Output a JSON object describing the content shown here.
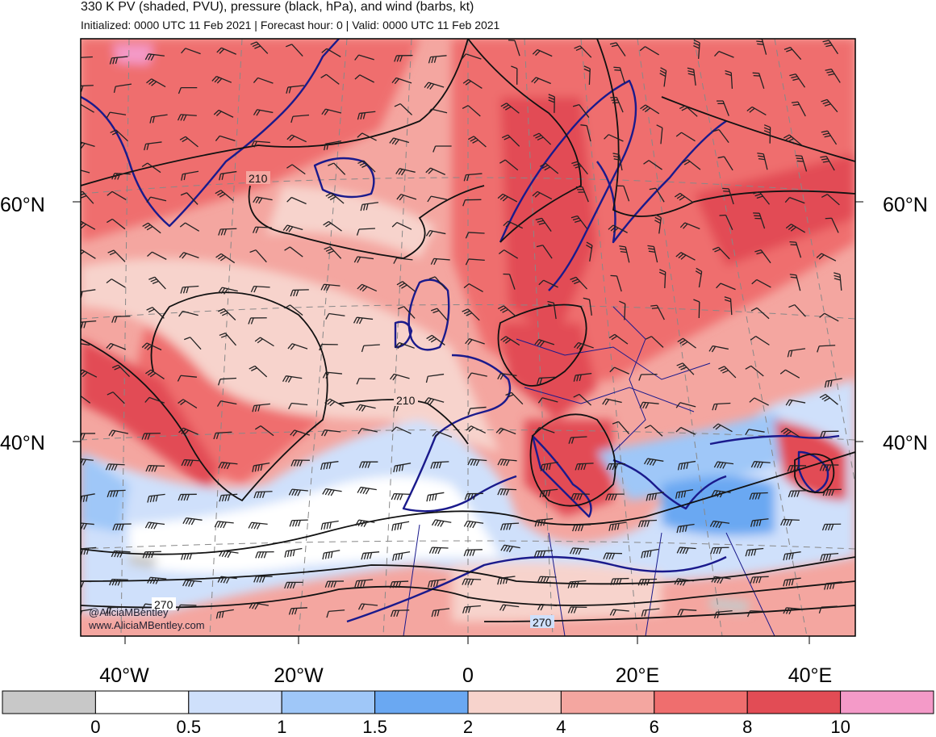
{
  "header": {
    "title": "330 K PV (shaded, PVU), pressure (black, hPa), and wind (barbs, kt)",
    "subtitle": "Initialized: 0000 UTC 11 Feb 2021 | Forecast hour: 0 | Valid: 0000 UTC 11 Feb 2021"
  },
  "map": {
    "projection": "lambert-conformal",
    "region": "North Atlantic and Europe",
    "lat_labels": [
      "60°N",
      "40°N"
    ],
    "lon_labels": [
      "40°W",
      "20°W",
      "0",
      "20°E",
      "40°E"
    ],
    "contour_labels": [
      "210",
      "210",
      "270",
      "270"
    ],
    "credit_lines": [
      "@AliciaMBentley",
      "www.AliciaMBentley.com"
    ],
    "coastline_color": "#1a1a8c",
    "contour_color": "#111111"
  },
  "colorbar": {
    "ticks": [
      "0",
      "0.5",
      "1",
      "1.5",
      "2",
      "4",
      "6",
      "8",
      "10"
    ],
    "bins": [
      {
        "color": "#c8c8c8"
      },
      {
        "color": "#ffffff"
      },
      {
        "color": "#cfe0fb"
      },
      {
        "color": "#9fc7f8"
      },
      {
        "color": "#6aa8f2"
      },
      {
        "color": "#f7d3cc"
      },
      {
        "color": "#f4a6a0"
      },
      {
        "color": "#ef6e6e"
      },
      {
        "color": "#e24c55"
      },
      {
        "color": "#f49ac8"
      }
    ]
  }
}
